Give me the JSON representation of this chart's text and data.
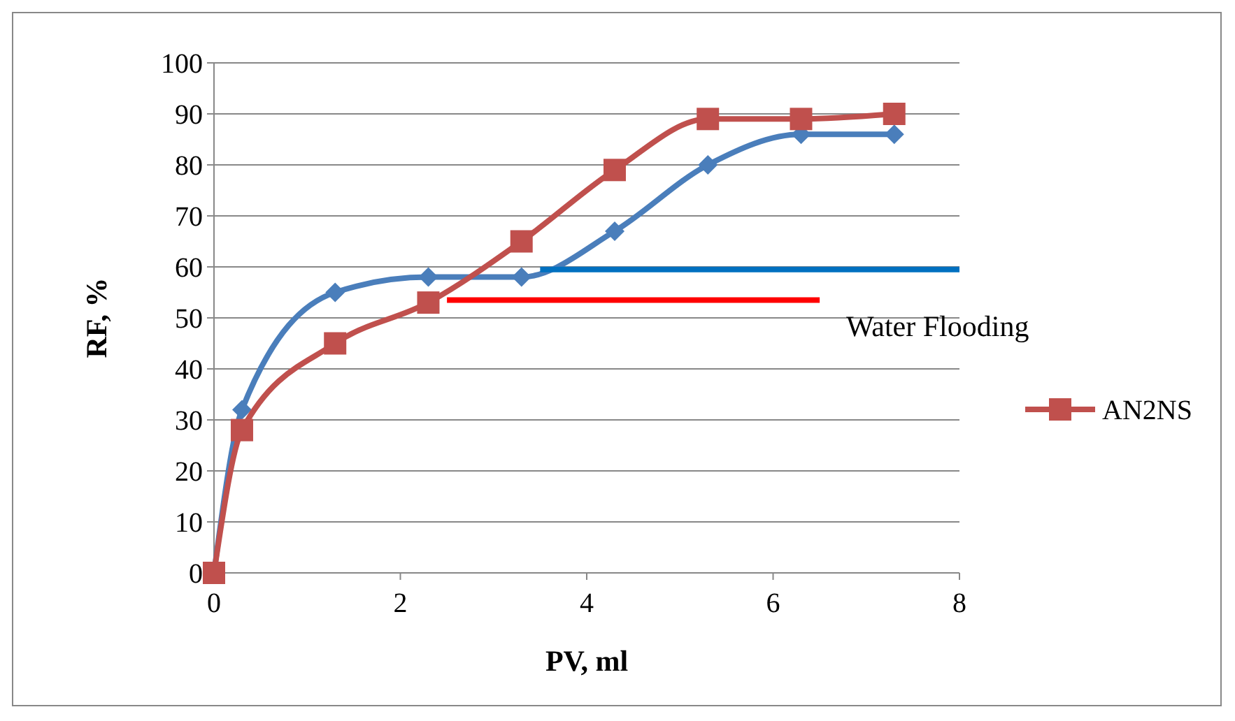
{
  "chart_data": {
    "type": "line",
    "xlabel": "PV, ml",
    "ylabel": "RF, %",
    "xlim": [
      0,
      8
    ],
    "xticks": [
      0,
      2,
      4,
      6,
      8
    ],
    "ylim": [
      0,
      100
    ],
    "yticks": [
      0,
      10,
      20,
      30,
      40,
      50,
      60,
      70,
      80,
      90,
      100
    ],
    "grid": "y",
    "legend": "right",
    "series": [
      {
        "color": "#4a7ebb",
        "marker": "diamond",
        "x": [
          0,
          0.3,
          1.3,
          2.3,
          3.3,
          4.3,
          5.3,
          6.3,
          7.3
        ],
        "values": [
          0,
          32,
          55,
          58,
          58,
          67,
          80,
          86,
          86
        ]
      },
      {
        "name": "AN2NS",
        "color": "#c0504d",
        "marker": "square",
        "x": [
          0,
          0.3,
          1.3,
          2.3,
          3.3,
          4.3,
          5.3,
          6.3,
          7.3
        ],
        "values": [
          0,
          28,
          45,
          53,
          65,
          79,
          89,
          89,
          90
        ]
      },
      {
        "color": "#0070c0",
        "marker": "none",
        "x": [
          3.5,
          8
        ],
        "values": [
          59.5,
          59.5
        ]
      },
      {
        "color": "#ff0000",
        "marker": "none",
        "x": [
          2.5,
          6.5
        ],
        "values": [
          53.5,
          53.5
        ]
      }
    ],
    "annotations": [
      "Water Flooding"
    ]
  }
}
